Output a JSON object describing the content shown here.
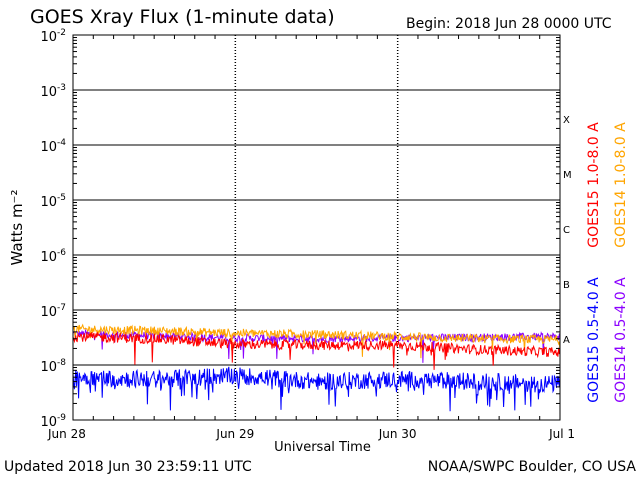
{
  "header": {
    "title": "GOES Xray Flux (1-minute data)",
    "begin": "Begin:  2018 Jun 28 0000 UTC"
  },
  "footer": {
    "updated": "Updated 2018 Jun 30 23:59:11 UTC",
    "credit": "NOAA/SWPC Boulder, CO USA"
  },
  "colors": {
    "goes15_long": "#ff0000",
    "goes14_long": "#ffa500",
    "goes15_short": "#0000ff",
    "goes14_short": "#8b00ff"
  },
  "chart_data": {
    "type": "line",
    "title": "GOES Xray Flux (1-minute data)",
    "xlabel": "Universal Time",
    "ylabel": "Watts m⁻²",
    "y_scale": "log",
    "ylim": [
      1e-09,
      0.01
    ],
    "y_ticks": [
      {
        "value": 0.01,
        "base": "10",
        "exp": "-2"
      },
      {
        "value": 0.001,
        "base": "10",
        "exp": "-3"
      },
      {
        "value": 0.0001,
        "base": "10",
        "exp": "-4"
      },
      {
        "value": 1e-05,
        "base": "10",
        "exp": "-5"
      },
      {
        "value": 1e-06,
        "base": "10",
        "exp": "-6"
      },
      {
        "value": 1e-07,
        "base": "10",
        "exp": "-7"
      },
      {
        "value": 1e-08,
        "base": "10",
        "exp": "-8"
      },
      {
        "value": 1e-09,
        "base": "10",
        "exp": "-9"
      }
    ],
    "x_ticks": [
      "Jun 28",
      "Jun 29",
      "Jun 30",
      "Jul 1"
    ],
    "flare_classes": [
      {
        "label": "X",
        "value": 0.0003
      },
      {
        "label": "M",
        "value": 3e-05
      },
      {
        "label": "C",
        "value": 3e-06
      },
      {
        "label": "B",
        "value": 3e-07
      },
      {
        "label": "A",
        "value": 3e-08
      }
    ],
    "legend": {
      "position": "right",
      "right_column": [
        "GOES14 1.0-8.0 A",
        "GOES14 0.5-4.0 A"
      ],
      "left_column": [
        "GOES15 1.0-8.0 A",
        "GOES15 0.5-4.0 A"
      ]
    },
    "x": [
      "Jun 28 00:00",
      "Jun 28 12:00",
      "Jun 29 00:00",
      "Jun 29 12:00",
      "Jun 30 00:00",
      "Jun 30 12:00",
      "Jul 1 00:00"
    ],
    "series": [
      {
        "name": "GOES14 1.0-8.0 A",
        "color": "#ffa500",
        "values": [
          4.5e-08,
          4.2e-08,
          3.8e-08,
          3.6e-08,
          3.3e-08,
          3e-08,
          2.9e-08
        ]
      },
      {
        "name": "GOES15 1.0-8.0 A",
        "color": "#ff0000",
        "values": [
          3.3e-08,
          3e-08,
          2.4e-08,
          2.3e-08,
          2.3e-08,
          1.9e-08,
          1.7e-08
        ]
      },
      {
        "name": "GOES14 0.5-4.0 A",
        "color": "#8b00ff",
        "values": [
          3.7e-08,
          3.4e-08,
          3.1e-08,
          3e-08,
          3.1e-08,
          3.2e-08,
          3.3e-08
        ]
      },
      {
        "name": "GOES15 0.5-4.0 A",
        "color": "#0000ff",
        "values": [
          6e-09,
          5.5e-09,
          6.5e-09,
          5e-09,
          5.5e-09,
          5e-09,
          4.5e-09
        ]
      }
    ]
  }
}
